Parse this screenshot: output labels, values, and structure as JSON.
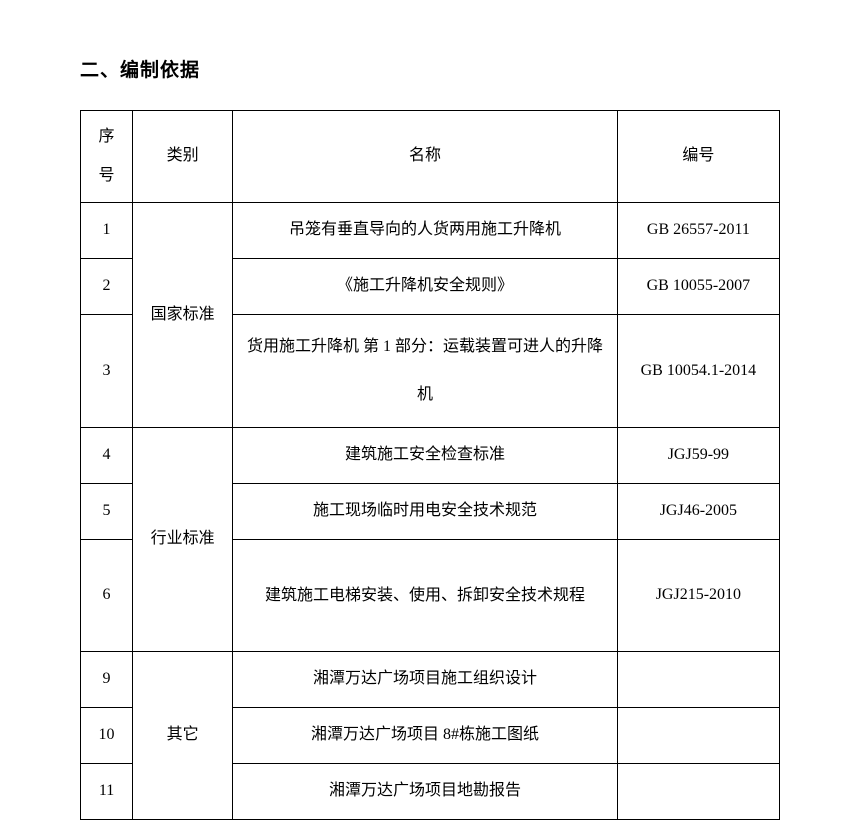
{
  "section_title": "二、编制依据",
  "table": {
    "columns": {
      "seq": "序号",
      "seq_char1": "序",
      "seq_char2": "号",
      "category": "类别",
      "name": "名称",
      "code": "编号"
    },
    "categories": {
      "national": "国家标准",
      "industry": "行业标准",
      "other": "其它"
    },
    "rows": [
      {
        "seq": "1",
        "name": "吊笼有垂直导向的人货两用施工升降机",
        "code": "GB 26557-2011"
      },
      {
        "seq": "2",
        "name": "《施工升降机安全规则》",
        "code": "GB 10055-2007"
      },
      {
        "seq": "3",
        "name": "货用施工升降机 第 1 部分：运载装置可进人的升降机",
        "code": "GB 10054.1-2014"
      },
      {
        "seq": "4",
        "name": "建筑施工安全检查标准",
        "code": "JGJ59-99"
      },
      {
        "seq": "5",
        "name": "施工现场临时用电安全技术规范",
        "code": "JGJ46-2005"
      },
      {
        "seq": "6",
        "name": "建筑施工电梯安装、使用、拆卸安全技术规程",
        "code": "JGJ215-2010"
      },
      {
        "seq": "9",
        "name": "湘潭万达广场项目施工组织设计",
        "code": ""
      },
      {
        "seq": "10",
        "name": "湘潭万达广场项目 8#栋施工图纸",
        "code": ""
      },
      {
        "seq": "11",
        "name": "湘潭万达广场项目地勘报告",
        "code": ""
      }
    ],
    "widths": {
      "seq": 52,
      "category": 100,
      "name": 384,
      "code": 162
    },
    "border_color": "#000000",
    "font_size": 16,
    "header_font_size": 16,
    "background_color": "#ffffff",
    "text_color": "#000000"
  }
}
